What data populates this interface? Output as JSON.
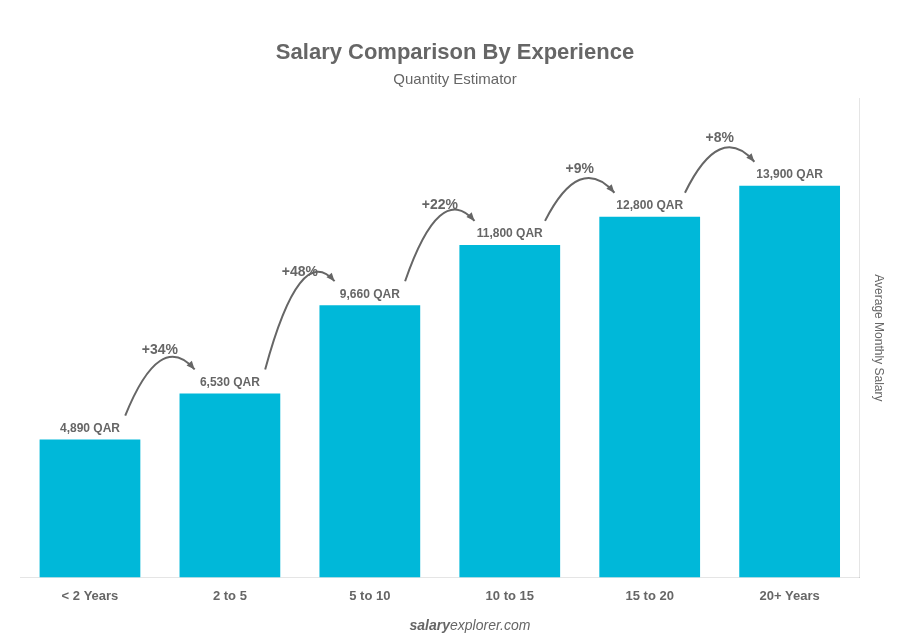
{
  "chart_data": {
    "type": "bar",
    "title": "Salary Comparison By Experience",
    "subtitle": "Quantity Estimator",
    "ylabel": "Average Monthly Salary",
    "categories": [
      "< 2 Years",
      "2 to 5",
      "5 to 10",
      "10 to 15",
      "15 to 20",
      "20+ Years"
    ],
    "values": [
      4890,
      6530,
      9660,
      11800,
      12800,
      13900
    ],
    "value_labels": [
      "4,890 QAR",
      "6,530 QAR",
      "9,660 QAR",
      "11,800 QAR",
      "12,800 QAR",
      "13,900 QAR"
    ],
    "annotations": [
      "+34%",
      "+48%",
      "+22%",
      "+9%",
      "+8%"
    ],
    "footer": [
      "salary",
      "explorer.com"
    ],
    "color": "#00b8d9",
    "ylim": [
      0,
      17000
    ],
    "grid": false,
    "data_labels": true,
    "tick_labels": "x"
  }
}
